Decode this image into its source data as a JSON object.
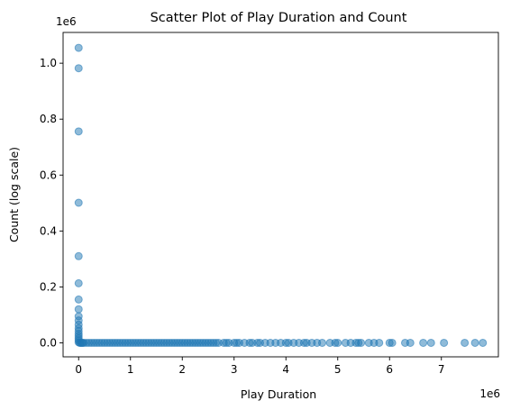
{
  "chart_data": {
    "type": "scatter",
    "title": "Scatter Plot of Play Duration and Count",
    "xlabel": "Play Duration",
    "ylabel": "Count (log scale)",
    "x_offset_label": "1e6",
    "y_offset_label": "1e6",
    "xlim": [
      -300000,
      8100000
    ],
    "ylim": [
      -50000,
      1110000
    ],
    "xticks": [
      0,
      1000000,
      2000000,
      3000000,
      4000000,
      5000000,
      6000000,
      7000000
    ],
    "xtick_labels": [
      "0",
      "1",
      "2",
      "3",
      "4",
      "5",
      "6",
      "7"
    ],
    "yticks": [
      0,
      200000,
      400000,
      600000,
      800000,
      1000000
    ],
    "ytick_labels": [
      "0.0",
      "0.2",
      "0.4",
      "0.6",
      "0.8",
      "1.0"
    ],
    "grid": false,
    "color": "#1f77b4",
    "series": [
      {
        "x": [
          0,
          0,
          0,
          0,
          0,
          0,
          0,
          0,
          0,
          0,
          0,
          0,
          0,
          0,
          0,
          0,
          0,
          0,
          20000,
          40000,
          60000,
          80000,
          100000,
          150000,
          200000,
          250000,
          300000,
          350000,
          400000,
          450000,
          500000,
          550000,
          600000,
          650000,
          700000,
          750000,
          800000,
          850000,
          900000,
          950000,
          1000000,
          1050000,
          1100000,
          1150000,
          1200000,
          1250000,
          1300000,
          1350000,
          1400000,
          1450000,
          1500000,
          1550000,
          1600000,
          1650000,
          1700000,
          1750000,
          1800000,
          1850000,
          1900000,
          1950000,
          2000000,
          2050000,
          2100000,
          2150000,
          2200000,
          2250000,
          2300000,
          2350000,
          2400000,
          2450000,
          2500000,
          2550000,
          2600000,
          2650000,
          2700000,
          2800000,
          2850000,
          2900000,
          3000000,
          3050000,
          3100000,
          3200000,
          3300000,
          3350000,
          3450000,
          3500000,
          3600000,
          3700000,
          3800000,
          3900000,
          4000000,
          4050000,
          4150000,
          4250000,
          4350000,
          4400000,
          4500000,
          4600000,
          4700000,
          4850000,
          4950000,
          5000000,
          5150000,
          5250000,
          5350000,
          5400000,
          5450000,
          5600000,
          5700000,
          5800000,
          6000000,
          6050000,
          6300000,
          6400000,
          6650000,
          6800000,
          7050000,
          7450000,
          7650000,
          7800000
        ],
        "y": [
          1055000,
          982000,
          756000,
          501000,
          310000,
          213000,
          155000,
          120000,
          95000,
          80000,
          65000,
          52000,
          42000,
          32000,
          24000,
          16000,
          9000,
          2000,
          0,
          0,
          0,
          0,
          0,
          0,
          0,
          0,
          0,
          0,
          0,
          0,
          0,
          0,
          0,
          0,
          0,
          0,
          0,
          0,
          0,
          0,
          0,
          0,
          0,
          0,
          0,
          0,
          0,
          0,
          0,
          0,
          0,
          0,
          0,
          0,
          0,
          0,
          0,
          0,
          0,
          0,
          0,
          0,
          0,
          0,
          0,
          0,
          0,
          0,
          0,
          0,
          0,
          0,
          0,
          0,
          0,
          0,
          0,
          0,
          0,
          0,
          0,
          0,
          0,
          0,
          0,
          0,
          0,
          0,
          0,
          0,
          0,
          0,
          0,
          0,
          0,
          0,
          0,
          0,
          0,
          0,
          0,
          0,
          0,
          0,
          0,
          0,
          0,
          0,
          0,
          0,
          0,
          0,
          0,
          0,
          0,
          0,
          0,
          0,
          0,
          0
        ]
      }
    ]
  }
}
